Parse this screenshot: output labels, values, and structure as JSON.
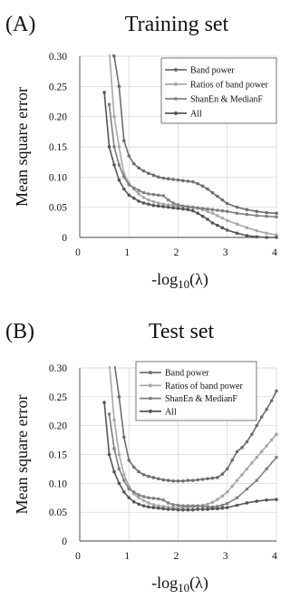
{
  "chart_data": [
    {
      "type": "line",
      "panel_label": "(A)",
      "title": "Training set",
      "xlabel_main": "-log",
      "xlabel_sub": "10",
      "xlabel_tail": "(λ)",
      "ylabel": "Mean square error",
      "xlim": [
        0,
        4
      ],
      "ylim": [
        0,
        0.3
      ],
      "xticks": [
        0,
        1,
        2,
        3,
        4
      ],
      "xtick_labels": [
        "0",
        "1",
        "2",
        "3",
        "4"
      ],
      "yticks": [
        0,
        0.05,
        0.1,
        0.15,
        0.2,
        0.25,
        0.3
      ],
      "ytick_labels": [
        "0",
        "0.05",
        "0.10",
        "0.15",
        "0.20",
        "0.25",
        "0.30"
      ],
      "grid": true,
      "legend_position": "top-right",
      "series": [
        {
          "name": "Band power",
          "color": "#6e6e6e",
          "x": [
            0.5,
            0.6,
            0.7,
            0.8,
            0.9,
            1.0,
            1.1,
            1.2,
            1.3,
            1.4,
            1.5,
            1.6,
            1.7,
            1.8,
            1.9,
            2.0,
            2.1,
            2.2,
            2.3,
            2.4,
            2.5,
            2.6,
            2.7,
            2.8,
            2.9,
            3.0,
            3.2,
            3.4,
            3.6,
            3.8,
            4.0
          ],
          "y": [
            0.31,
            0.31,
            0.3,
            0.25,
            0.16,
            0.135,
            0.122,
            0.115,
            0.11,
            0.106,
            0.103,
            0.1,
            0.098,
            0.097,
            0.096,
            0.095,
            0.094,
            0.093,
            0.092,
            0.089,
            0.085,
            0.08,
            0.074,
            0.068,
            0.062,
            0.056,
            0.05,
            0.046,
            0.043,
            0.041,
            0.04
          ]
        },
        {
          "name": "Ratios of band power",
          "color": "#a9a9a9",
          "x": [
            0.6,
            0.7,
            0.8,
            0.9,
            1.0,
            1.1,
            1.2,
            1.3,
            1.4,
            1.5,
            1.6,
            1.7,
            1.8,
            1.9,
            2.0,
            2.1,
            2.2,
            2.3,
            2.4,
            2.5,
            2.6,
            2.7,
            2.8,
            2.9,
            3.0,
            3.2,
            3.4,
            3.6,
            3.8,
            4.0
          ],
          "y": [
            0.31,
            0.2,
            0.15,
            0.105,
            0.09,
            0.08,
            0.072,
            0.066,
            0.062,
            0.059,
            0.057,
            0.055,
            0.054,
            0.053,
            0.052,
            0.051,
            0.05,
            0.049,
            0.048,
            0.046,
            0.043,
            0.04,
            0.036,
            0.032,
            0.028,
            0.022,
            0.016,
            0.011,
            0.007,
            0.004
          ]
        },
        {
          "name": "ShanEn & MedianF",
          "color": "#7f7f7f",
          "x": [
            0.6,
            0.7,
            0.8,
            0.9,
            1.0,
            1.1,
            1.2,
            1.3,
            1.4,
            1.5,
            1.6,
            1.7,
            1.8,
            1.9,
            2.0,
            2.1,
            2.2,
            2.3,
            2.4,
            2.5,
            2.6,
            2.7,
            2.8,
            2.9,
            3.0,
            3.2,
            3.4,
            3.6,
            3.8,
            4.0
          ],
          "y": [
            0.22,
            0.15,
            0.12,
            0.1,
            0.087,
            0.082,
            0.078,
            0.074,
            0.072,
            0.071,
            0.07,
            0.069,
            0.062,
            0.057,
            0.054,
            0.052,
            0.051,
            0.05,
            0.049,
            0.048,
            0.047,
            0.046,
            0.045,
            0.044,
            0.043,
            0.04,
            0.038,
            0.036,
            0.035,
            0.034
          ]
        },
        {
          "name": "All",
          "color": "#555555",
          "x": [
            0.5,
            0.6,
            0.7,
            0.8,
            0.9,
            1.0,
            1.1,
            1.2,
            1.3,
            1.4,
            1.5,
            1.6,
            1.7,
            1.8,
            1.9,
            2.0,
            2.1,
            2.2,
            2.3,
            2.4,
            2.5,
            2.6,
            2.7,
            2.8,
            2.9,
            3.0,
            3.2,
            3.4,
            3.6,
            3.8,
            4.0
          ],
          "y": [
            0.24,
            0.15,
            0.12,
            0.095,
            0.08,
            0.07,
            0.065,
            0.06,
            0.057,
            0.055,
            0.053,
            0.052,
            0.051,
            0.05,
            0.049,
            0.048,
            0.047,
            0.046,
            0.044,
            0.04,
            0.035,
            0.03,
            0.024,
            0.02,
            0.016,
            0.012,
            0.007,
            0.003,
            0.001,
            0.0,
            0.0
          ]
        }
      ]
    },
    {
      "type": "line",
      "panel_label": "(B)",
      "title": "Test set",
      "xlabel_main": "-log",
      "xlabel_sub": "10",
      "xlabel_tail": "(λ)",
      "ylabel": "Mean square error",
      "xlim": [
        0,
        4
      ],
      "ylim": [
        0,
        0.3
      ],
      "xticks": [
        0,
        1,
        2,
        3,
        4
      ],
      "xtick_labels": [
        "0",
        "1",
        "2",
        "3",
        "4"
      ],
      "yticks": [
        0,
        0.05,
        0.1,
        0.15,
        0.2,
        0.25,
        0.3
      ],
      "ytick_labels": [
        "0",
        "0.05",
        "0.10",
        "0.15",
        "0.20",
        "0.25",
        "0.30"
      ],
      "grid": true,
      "legend_position": "top-left",
      "series": [
        {
          "name": "Band power",
          "color": "#6e6e6e",
          "x": [
            0.5,
            0.6,
            0.7,
            0.8,
            0.9,
            1.0,
            1.1,
            1.2,
            1.3,
            1.4,
            1.5,
            1.6,
            1.7,
            1.8,
            1.9,
            2.0,
            2.1,
            2.2,
            2.3,
            2.4,
            2.5,
            2.6,
            2.7,
            2.8,
            2.9,
            3.0,
            3.1,
            3.2,
            3.3,
            3.4,
            3.5,
            3.6,
            3.7,
            3.8,
            3.9,
            4.0
          ],
          "y": [
            0.31,
            0.31,
            0.31,
            0.25,
            0.18,
            0.14,
            0.128,
            0.12,
            0.115,
            0.112,
            0.11,
            0.108,
            0.106,
            0.105,
            0.104,
            0.104,
            0.104,
            0.105,
            0.105,
            0.106,
            0.107,
            0.108,
            0.109,
            0.11,
            0.116,
            0.125,
            0.14,
            0.155,
            0.162,
            0.172,
            0.185,
            0.2,
            0.215,
            0.228,
            0.243,
            0.26
          ]
        },
        {
          "name": "Ratios of band power",
          "color": "#a9a9a9",
          "x": [
            0.6,
            0.7,
            0.8,
            0.9,
            1.0,
            1.1,
            1.2,
            1.3,
            1.4,
            1.5,
            1.6,
            1.7,
            1.8,
            1.9,
            2.0,
            2.1,
            2.2,
            2.3,
            2.4,
            2.5,
            2.6,
            2.7,
            2.8,
            2.9,
            3.0,
            3.1,
            3.2,
            3.3,
            3.4,
            3.5,
            3.6,
            3.7,
            3.8,
            3.9,
            4.0
          ],
          "y": [
            0.31,
            0.21,
            0.15,
            0.115,
            0.095,
            0.082,
            0.075,
            0.07,
            0.066,
            0.063,
            0.061,
            0.06,
            0.059,
            0.058,
            0.058,
            0.058,
            0.058,
            0.059,
            0.06,
            0.062,
            0.064,
            0.067,
            0.072,
            0.078,
            0.085,
            0.095,
            0.105,
            0.115,
            0.125,
            0.135,
            0.145,
            0.155,
            0.165,
            0.175,
            0.185
          ]
        },
        {
          "name": "ShanEn & MedianF",
          "color": "#7f7f7f",
          "x": [
            0.6,
            0.7,
            0.8,
            0.9,
            1.0,
            1.1,
            1.2,
            1.3,
            1.4,
            1.5,
            1.6,
            1.7,
            1.8,
            1.9,
            2.0,
            2.1,
            2.2,
            2.3,
            2.4,
            2.5,
            2.6,
            2.7,
            2.8,
            2.9,
            3.0,
            3.2,
            3.4,
            3.6,
            3.8,
            4.0
          ],
          "y": [
            0.22,
            0.16,
            0.125,
            0.105,
            0.09,
            0.085,
            0.08,
            0.077,
            0.075,
            0.074,
            0.073,
            0.071,
            0.066,
            0.063,
            0.062,
            0.061,
            0.061,
            0.061,
            0.061,
            0.06,
            0.059,
            0.059,
            0.06,
            0.062,
            0.065,
            0.075,
            0.09,
            0.105,
            0.125,
            0.145
          ]
        },
        {
          "name": "All",
          "color": "#555555",
          "x": [
            0.5,
            0.6,
            0.7,
            0.8,
            0.9,
            1.0,
            1.1,
            1.2,
            1.3,
            1.4,
            1.5,
            1.6,
            1.7,
            1.8,
            1.9,
            2.0,
            2.1,
            2.2,
            2.3,
            2.4,
            2.5,
            2.6,
            2.7,
            2.8,
            2.9,
            3.0,
            3.2,
            3.4,
            3.6,
            3.8,
            4.0
          ],
          "y": [
            0.24,
            0.15,
            0.12,
            0.1,
            0.085,
            0.075,
            0.068,
            0.064,
            0.061,
            0.059,
            0.058,
            0.057,
            0.056,
            0.055,
            0.055,
            0.054,
            0.054,
            0.054,
            0.054,
            0.055,
            0.055,
            0.055,
            0.056,
            0.056,
            0.057,
            0.058,
            0.062,
            0.066,
            0.069,
            0.071,
            0.072
          ]
        }
      ]
    }
  ]
}
